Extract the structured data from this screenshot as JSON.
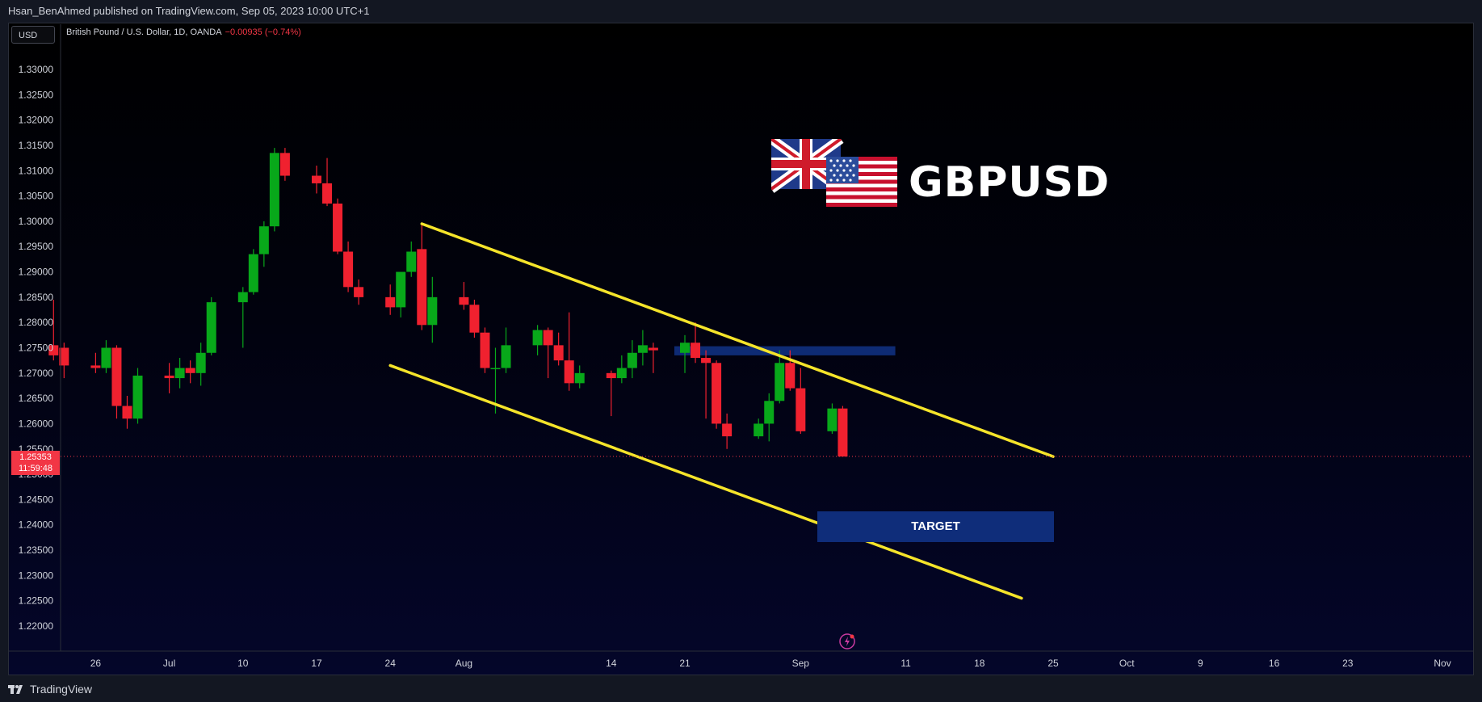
{
  "header": {
    "published_line": "Hsan_BenAhmed published on TradingView.com, Sep 05, 2023 10:00 UTC+1"
  },
  "toolbar": {
    "currency": "USD"
  },
  "legend": {
    "symbol": "British Pound / U.S. Dollar, 1D, OANDA",
    "change": "−0.00935 (−0.74%)"
  },
  "price_tag": {
    "price": "1.25353",
    "countdown": "11:59:48"
  },
  "annotations": {
    "title": "GBPUSD",
    "target_label": "TARGET"
  },
  "footer": {
    "brand": "TradingView"
  },
  "colors": {
    "up": "#08a81a",
    "down": "#f0212f",
    "channel": "#f5e42a",
    "box": "#0f2d7a"
  },
  "chart_data": {
    "type": "candlestick",
    "symbol": "GBPUSD",
    "interval": "1D",
    "ylim": [
      1.2175,
      1.3355
    ],
    "y_ticks": [
      "1.33000",
      "1.32500",
      "1.32000",
      "1.31500",
      "1.31000",
      "1.30500",
      "1.30000",
      "1.29500",
      "1.29000",
      "1.28500",
      "1.28000",
      "1.27500",
      "1.27000",
      "1.26500",
      "1.26000",
      "1.25500",
      "1.25000",
      "1.24500",
      "1.24000",
      "1.23500",
      "1.23000",
      "1.22500",
      "1.22000"
    ],
    "x_ticks": [
      {
        "label": "26",
        "date": "2023-06-26"
      },
      {
        "label": "Jul",
        "date": "2023-07-03"
      },
      {
        "label": "10",
        "date": "2023-07-10"
      },
      {
        "label": "17",
        "date": "2023-07-17"
      },
      {
        "label": "24",
        "date": "2023-07-24"
      },
      {
        "label": "Aug",
        "date": "2023-07-31"
      },
      {
        "label": "14",
        "date": "2023-08-14"
      },
      {
        "label": "21",
        "date": "2023-08-21"
      },
      {
        "label": "Sep",
        "date": "2023-09-01"
      },
      {
        "label": "11",
        "date": "2023-09-11"
      },
      {
        "label": "18",
        "date": "2023-09-18"
      },
      {
        "label": "25",
        "date": "2023-09-25"
      },
      {
        "label": "Oct",
        "date": "2023-10-02"
      },
      {
        "label": "9",
        "date": "2023-10-09"
      },
      {
        "label": "16",
        "date": "2023-10-16"
      },
      {
        "label": "23",
        "date": "2023-10-23"
      },
      {
        "label": "Nov",
        "date": "2023-11-01"
      }
    ],
    "last_price": 1.25353,
    "candles": [
      {
        "date": "2023-06-22",
        "o": 1.2755,
        "h": 1.2845,
        "l": 1.2725,
        "c": 1.2735
      },
      {
        "date": "2023-06-23",
        "o": 1.275,
        "h": 1.276,
        "l": 1.269,
        "c": 1.2715
      },
      {
        "date": "2023-06-26",
        "o": 1.2715,
        "h": 1.274,
        "l": 1.27,
        "c": 1.271
      },
      {
        "date": "2023-06-27",
        "o": 1.271,
        "h": 1.2765,
        "l": 1.27,
        "c": 1.275
      },
      {
        "date": "2023-06-28",
        "o": 1.275,
        "h": 1.2755,
        "l": 1.261,
        "c": 1.2635
      },
      {
        "date": "2023-06-29",
        "o": 1.2635,
        "h": 1.2655,
        "l": 1.259,
        "c": 1.261
      },
      {
        "date": "2023-06-30",
        "o": 1.261,
        "h": 1.271,
        "l": 1.26,
        "c": 1.2695
      },
      {
        "date": "2023-07-03",
        "o": 1.2695,
        "h": 1.272,
        "l": 1.266,
        "c": 1.269
      },
      {
        "date": "2023-07-04",
        "o": 1.269,
        "h": 1.273,
        "l": 1.267,
        "c": 1.271
      },
      {
        "date": "2023-07-05",
        "o": 1.271,
        "h": 1.2725,
        "l": 1.268,
        "c": 1.27
      },
      {
        "date": "2023-07-06",
        "o": 1.27,
        "h": 1.276,
        "l": 1.2675,
        "c": 1.274
      },
      {
        "date": "2023-07-07",
        "o": 1.274,
        "h": 1.285,
        "l": 1.2735,
        "c": 1.284
      },
      {
        "date": "2023-07-10",
        "o": 1.284,
        "h": 1.287,
        "l": 1.275,
        "c": 1.286
      },
      {
        "date": "2023-07-11",
        "o": 1.286,
        "h": 1.2945,
        "l": 1.2855,
        "c": 1.2935
      },
      {
        "date": "2023-07-12",
        "o": 1.2935,
        "h": 1.3,
        "l": 1.291,
        "c": 1.299
      },
      {
        "date": "2023-07-13",
        "o": 1.299,
        "h": 1.3145,
        "l": 1.298,
        "c": 1.3135
      },
      {
        "date": "2023-07-14",
        "o": 1.3135,
        "h": 1.3145,
        "l": 1.308,
        "c": 1.309
      },
      {
        "date": "2023-07-17",
        "o": 1.309,
        "h": 1.311,
        "l": 1.3055,
        "c": 1.3075
      },
      {
        "date": "2023-07-18",
        "o": 1.3075,
        "h": 1.3125,
        "l": 1.303,
        "c": 1.3035
      },
      {
        "date": "2023-07-19",
        "o": 1.3035,
        "h": 1.3045,
        "l": 1.2935,
        "c": 1.294
      },
      {
        "date": "2023-07-20",
        "o": 1.294,
        "h": 1.296,
        "l": 1.286,
        "c": 1.287
      },
      {
        "date": "2023-07-21",
        "o": 1.287,
        "h": 1.2885,
        "l": 1.2835,
        "c": 1.285
      },
      {
        "date": "2023-07-24",
        "o": 1.285,
        "h": 1.2875,
        "l": 1.2815,
        "c": 1.283
      },
      {
        "date": "2023-07-25",
        "o": 1.283,
        "h": 1.2895,
        "l": 1.281,
        "c": 1.29
      },
      {
        "date": "2023-07-26",
        "o": 1.29,
        "h": 1.296,
        "l": 1.289,
        "c": 1.294
      },
      {
        "date": "2023-07-27",
        "o": 1.2945,
        "h": 1.2995,
        "l": 1.2785,
        "c": 1.2795
      },
      {
        "date": "2023-07-28",
        "o": 1.2795,
        "h": 1.289,
        "l": 1.276,
        "c": 1.285
      },
      {
        "date": "2023-07-31",
        "o": 1.285,
        "h": 1.288,
        "l": 1.2825,
        "c": 1.2835
      },
      {
        "date": "2023-08-01",
        "o": 1.2835,
        "h": 1.2845,
        "l": 1.277,
        "c": 1.278
      },
      {
        "date": "2023-08-02",
        "o": 1.278,
        "h": 1.279,
        "l": 1.27,
        "c": 1.271
      },
      {
        "date": "2023-08-03",
        "o": 1.271,
        "h": 1.275,
        "l": 1.262,
        "c": 1.271
      },
      {
        "date": "2023-08-04",
        "o": 1.271,
        "h": 1.279,
        "l": 1.27,
        "c": 1.2755
      },
      {
        "date": "2023-08-07",
        "o": 1.2755,
        "h": 1.2795,
        "l": 1.2735,
        "c": 1.2785
      },
      {
        "date": "2023-08-08",
        "o": 1.2785,
        "h": 1.279,
        "l": 1.269,
        "c": 1.2755
      },
      {
        "date": "2023-08-09",
        "o": 1.2755,
        "h": 1.278,
        "l": 1.2715,
        "c": 1.2725
      },
      {
        "date": "2023-08-10",
        "o": 1.2725,
        "h": 1.282,
        "l": 1.2665,
        "c": 1.268
      },
      {
        "date": "2023-08-11",
        "o": 1.268,
        "h": 1.2715,
        "l": 1.267,
        "c": 1.27
      },
      {
        "date": "2023-08-14",
        "o": 1.27,
        "h": 1.2705,
        "l": 1.2615,
        "c": 1.269
      },
      {
        "date": "2023-08-15",
        "o": 1.269,
        "h": 1.2735,
        "l": 1.268,
        "c": 1.271
      },
      {
        "date": "2023-08-16",
        "o": 1.271,
        "h": 1.2765,
        "l": 1.269,
        "c": 1.274
      },
      {
        "date": "2023-08-17",
        "o": 1.274,
        "h": 1.2785,
        "l": 1.2715,
        "c": 1.2755
      },
      {
        "date": "2023-08-18",
        "o": 1.275,
        "h": 1.276,
        "l": 1.27,
        "c": 1.2745
      },
      {
        "date": "2023-08-21",
        "o": 1.274,
        "h": 1.2775,
        "l": 1.27,
        "c": 1.276
      },
      {
        "date": "2023-08-22",
        "o": 1.276,
        "h": 1.28,
        "l": 1.272,
        "c": 1.273
      },
      {
        "date": "2023-08-23",
        "o": 1.273,
        "h": 1.2745,
        "l": 1.261,
        "c": 1.272
      },
      {
        "date": "2023-08-24",
        "o": 1.272,
        "h": 1.2725,
        "l": 1.259,
        "c": 1.26
      },
      {
        "date": "2023-08-25",
        "o": 1.26,
        "h": 1.262,
        "l": 1.255,
        "c": 1.2575
      },
      {
        "date": "2023-08-28",
        "o": 1.2575,
        "h": 1.261,
        "l": 1.257,
        "c": 1.26
      },
      {
        "date": "2023-08-29",
        "o": 1.26,
        "h": 1.266,
        "l": 1.2565,
        "c": 1.2645
      },
      {
        "date": "2023-08-30",
        "o": 1.2645,
        "h": 1.2745,
        "l": 1.264,
        "c": 1.272
      },
      {
        "date": "2023-08-31",
        "o": 1.272,
        "h": 1.2745,
        "l": 1.2665,
        "c": 1.267
      },
      {
        "date": "2023-09-01",
        "o": 1.267,
        "h": 1.271,
        "l": 1.258,
        "c": 1.2585
      },
      {
        "date": "2023-09-04",
        "o": 1.2585,
        "h": 1.264,
        "l": 1.258,
        "c": 1.263
      },
      {
        "date": "2023-09-05",
        "o": 1.263,
        "h": 1.2635,
        "l": 1.2535,
        "c": 1.2535
      }
    ],
    "channel_lines": [
      {
        "name": "upper",
        "from": {
          "date": "2023-07-27",
          "price": 1.2995
        },
        "to": {
          "date": "2023-09-25",
          "price": 1.2535
        }
      },
      {
        "name": "lower",
        "from": {
          "date": "2023-07-24",
          "price": 1.2715
        },
        "to": {
          "date": "2023-09-22",
          "price": 1.2255
        }
      }
    ],
    "zones": [
      {
        "name": "resistance",
        "from": "2023-08-20",
        "to": "2023-09-10",
        "top": 1.2753,
        "bottom": 1.2735
      },
      {
        "name": "target",
        "from": "2023-09-05",
        "to": "2023-09-25",
        "top": 1.2425,
        "bottom": 1.2365
      }
    ]
  }
}
